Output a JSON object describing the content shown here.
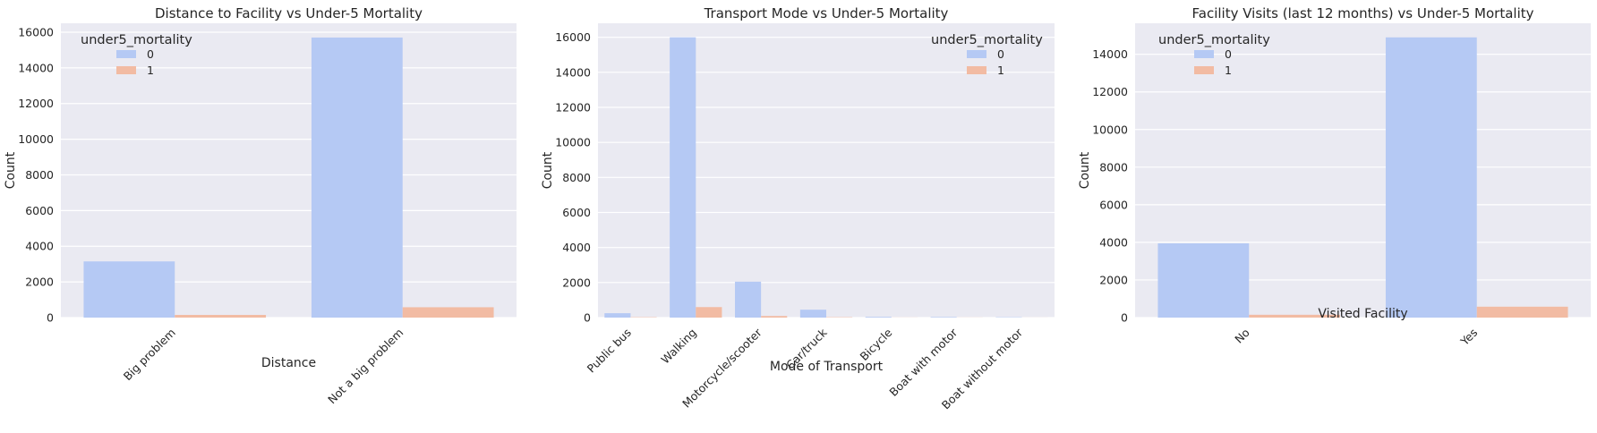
{
  "colors": {
    "panel_bg": "#EAEAF2",
    "grid": "#FFFFFF",
    "series_0": "#B5C9F4",
    "series_1": "#F2BBA3"
  },
  "chart_data": [
    {
      "type": "bar",
      "title": "Distance to Facility vs Under-5 Mortality",
      "xlabel": "Distance",
      "ylabel": "Count",
      "categories": [
        "Big problem",
        "Not a big problem"
      ],
      "series": [
        {
          "name": "0",
          "values": [
            3150,
            15700
          ]
        },
        {
          "name": "1",
          "values": [
            150,
            580
          ]
        }
      ],
      "ylim": [
        0,
        16500
      ],
      "yticks": [
        0,
        2000,
        4000,
        6000,
        8000,
        10000,
        12000,
        14000,
        16000
      ],
      "legend": {
        "title": "under5_mortality",
        "position": "top-left"
      },
      "grid": true
    },
    {
      "type": "bar",
      "title": "Transport Mode vs Under-5 Mortality",
      "xlabel": "Mode of Transport",
      "ylabel": "Count",
      "categories": [
        "Public bus",
        "Walking",
        "Motorcycle/scooter",
        "Car/truck",
        "Bicycle",
        "Boat with motor",
        "Boat without motor"
      ],
      "series": [
        {
          "name": "0",
          "values": [
            250,
            16000,
            2050,
            450,
            40,
            30,
            20
          ]
        },
        {
          "name": "1",
          "values": [
            20,
            600,
            90,
            20,
            5,
            5,
            3
          ]
        }
      ],
      "ylim": [
        0,
        16800
      ],
      "yticks": [
        0,
        2000,
        4000,
        6000,
        8000,
        10000,
        12000,
        14000,
        16000
      ],
      "legend": {
        "title": "under5_mortality",
        "position": "top-right"
      },
      "grid": true
    },
    {
      "type": "bar",
      "title": "Facility Visits (last 12 months) vs Under-5 Mortality",
      "xlabel": "Visited Facility",
      "ylabel": "Count",
      "categories": [
        "No",
        "Yes"
      ],
      "series": [
        {
          "name": "0",
          "values": [
            3950,
            14900
          ]
        },
        {
          "name": "1",
          "values": [
            150,
            580
          ]
        }
      ],
      "ylim": [
        0,
        15650
      ],
      "yticks": [
        0,
        2000,
        4000,
        6000,
        8000,
        10000,
        12000,
        14000
      ],
      "legend": {
        "title": "under5_mortality",
        "position": "top-left"
      },
      "grid": true
    }
  ]
}
